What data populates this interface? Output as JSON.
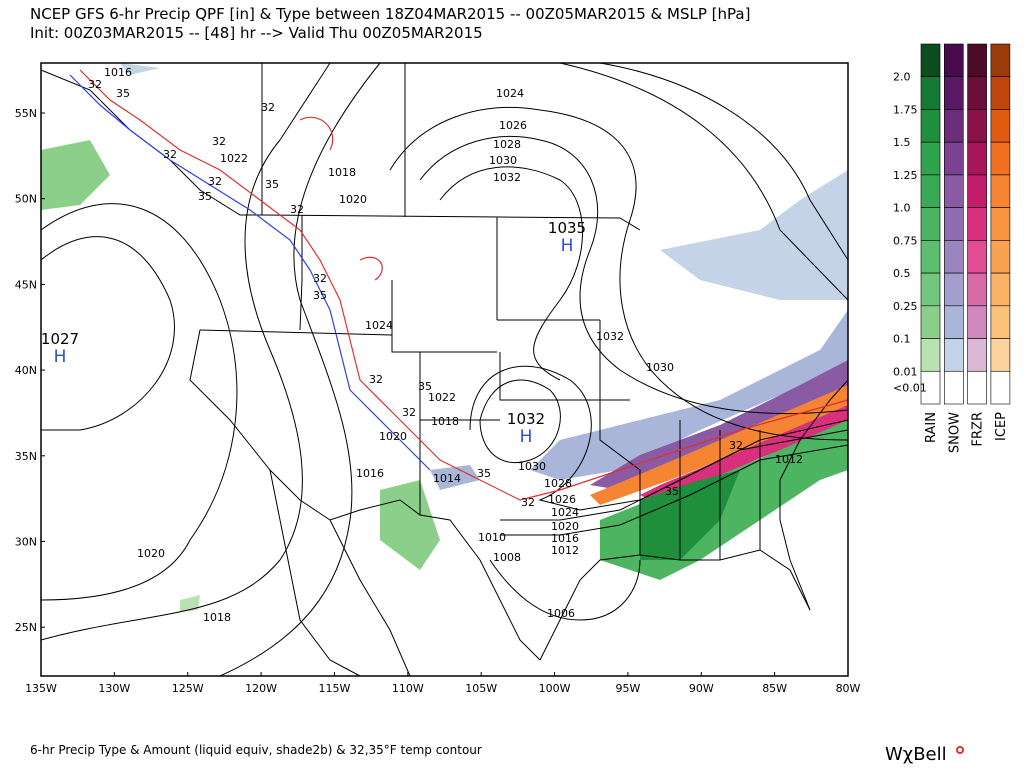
{
  "header": {
    "line1": "NCEP GFS 6-hr Precip QPF [in] & Type between 18Z04MAR2015 -- 00Z05MAR2015 & MSLP [hPa]",
    "line2": "Init: 00Z03MAR2015 -- [48] hr --> Valid Thu 00Z05MAR2015"
  },
  "map": {
    "lat_labels": [
      "55N",
      "50N",
      "45N",
      "40N",
      "35N",
      "30N",
      "25N"
    ],
    "lon_labels": [
      "135W",
      "130W",
      "125W",
      "120W",
      "115W",
      "110W",
      "105W",
      "100W",
      "95W",
      "90W",
      "85W",
      "80W"
    ],
    "highs": [
      {
        "pressure": 1035,
        "symbol": "H"
      },
      {
        "pressure": 1027,
        "symbol": "H"
      },
      {
        "pressure": 1032,
        "symbol": "H"
      }
    ],
    "contour_labels": [
      1016,
      32,
      35,
      32,
      1022,
      1018,
      1020,
      32,
      35,
      32,
      32,
      32,
      35,
      1024,
      1026,
      1028,
      1030,
      1032,
      32,
      35,
      1024,
      1032,
      1030,
      32,
      35,
      1022,
      32,
      1018,
      1020,
      1016,
      1014,
      35,
      1030,
      1028,
      1026,
      32,
      1024,
      1020,
      1016,
      1012,
      1010,
      1008,
      1006,
      1020,
      1018,
      1012,
      35,
      32
    ]
  },
  "legend": {
    "levels": [
      "2.0",
      "1.75",
      "1.5",
      "1.25",
      "1.0",
      "0.75",
      "0.5",
      "0.25",
      "0.1",
      "0.01",
      "<0.01"
    ],
    "columns": [
      "RAIN",
      "SNOW",
      "FRZR",
      "ICEP"
    ]
  },
  "footer": {
    "note": "6-hr Precip Type & Amount (liquid equiv, shade2b) & 32,35°F temp contour",
    "brand": "WχBell"
  }
}
